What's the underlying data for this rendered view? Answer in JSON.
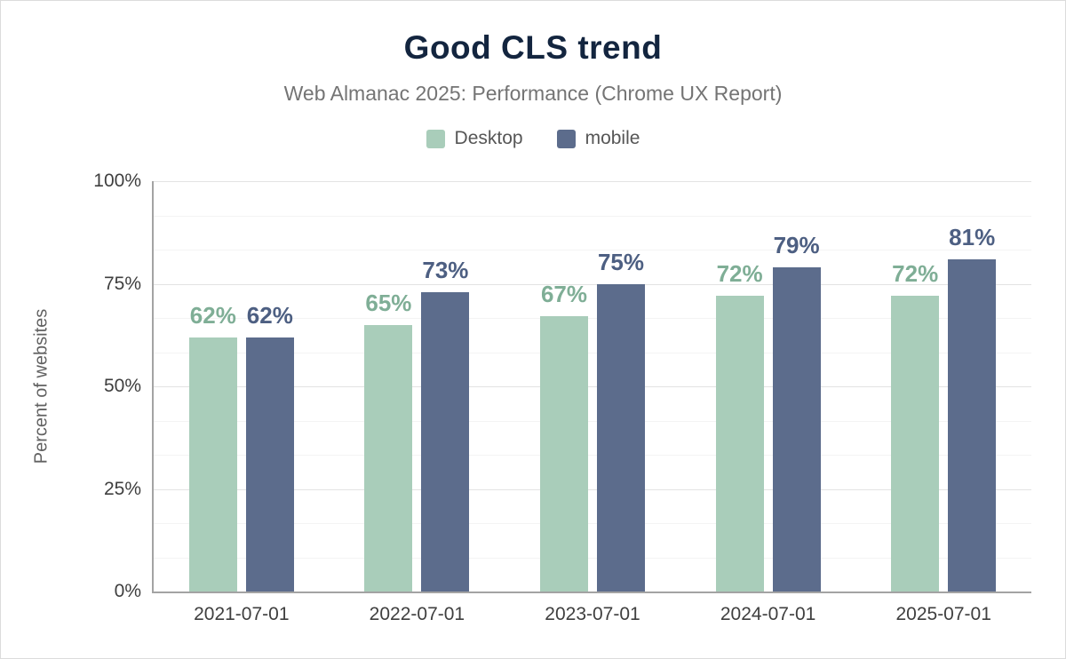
{
  "header": {
    "title": "Good CLS trend",
    "subtitle": "Web Almanac 2025: Performance (Chrome UX Report)"
  },
  "legend": [
    {
      "label": "Desktop",
      "color": "#a9cdba"
    },
    {
      "label": "mobile",
      "color": "#5c6c8c"
    }
  ],
  "chart_data": {
    "type": "bar",
    "title": "Good CLS trend",
    "subtitle": "Web Almanac 2025: Performance (Chrome UX Report)",
    "categories": [
      "2021-07-01",
      "2022-07-01",
      "2023-07-01",
      "2024-07-01",
      "2025-07-01"
    ],
    "series": [
      {
        "name": "Desktop",
        "color": "#a9cdba",
        "label_color": "#7fae96",
        "values": [
          62,
          65,
          67,
          72,
          72
        ]
      },
      {
        "name": "mobile",
        "color": "#5c6c8c",
        "label_color": "#4d5f82",
        "values": [
          62,
          73,
          75,
          79,
          81
        ]
      }
    ],
    "xlabel": "",
    "ylabel": "Percent of websites",
    "ylim": [
      0,
      100
    ],
    "yticks": [
      0,
      25,
      50,
      75,
      100
    ],
    "ytick_labels": [
      "0%",
      "25%",
      "50%",
      "75%",
      "100%"
    ],
    "value_suffix": "%",
    "grid": "horizontal-major-and-minor",
    "legend_position": "top"
  }
}
